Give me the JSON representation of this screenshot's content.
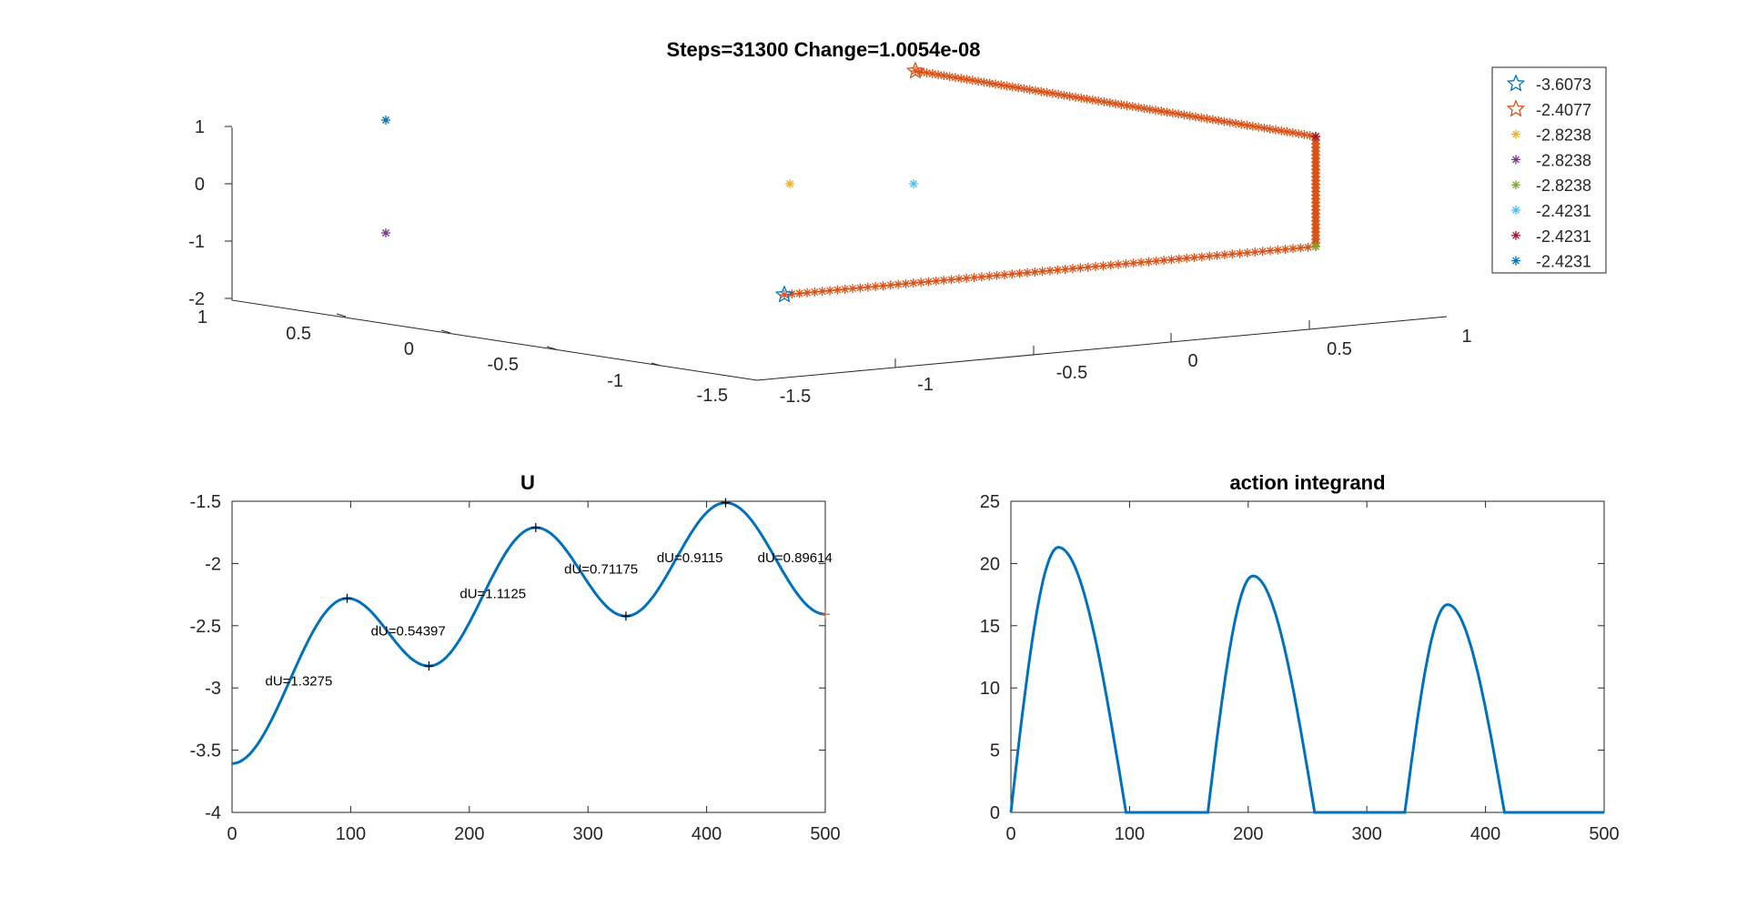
{
  "chart_data": [
    {
      "type": "scatter",
      "title": "Steps=31300 Change=1.0054e-08",
      "xlim": [
        -1.5,
        1
      ],
      "ylim": [
        -1.5,
        1
      ],
      "zlim": [
        -2,
        1
      ],
      "x_ticks": [
        "-1.5",
        "-1",
        "-0.5",
        "0",
        "0.5",
        "1"
      ],
      "y_ticks": [
        "-1.5",
        "-1",
        "-0.5",
        "0",
        "0.5",
        "1"
      ],
      "z_ticks": [
        "-2",
        "-1",
        "0",
        "1"
      ],
      "legend_position": "top-right",
      "series": [
        {
          "name": "-3.6073",
          "marker": "star",
          "color": "#0072BD"
        },
        {
          "name": "-2.4077",
          "marker": "star",
          "color": "#D95319"
        },
        {
          "name": "-2.8238",
          "marker": "asterisk",
          "color": "#EDB120"
        },
        {
          "name": "-2.8238",
          "marker": "asterisk",
          "color": "#7E2F8E"
        },
        {
          "name": "-2.8238",
          "marker": "asterisk",
          "color": "#77AC30"
        },
        {
          "name": "-2.4231",
          "marker": "asterisk",
          "color": "#4DBEEE"
        },
        {
          "name": "-2.4231",
          "marker": "asterisk",
          "color": "#A2142F"
        },
        {
          "name": "-2.4231",
          "marker": "asterisk",
          "color": "#0072BD"
        }
      ]
    },
    {
      "type": "line",
      "title": "U",
      "xlim": [
        0,
        500
      ],
      "ylim": [
        -4,
        -1.5
      ],
      "x_ticks": [
        "0",
        "100",
        "200",
        "300",
        "400",
        "500"
      ],
      "y_ticks": [
        "-1.5",
        "-2",
        "-2.5",
        "-3",
        "-3.5",
        "-4"
      ],
      "series": [
        {
          "color": "#0072BD",
          "x": [
            0,
            97,
            166,
            256,
            332,
            416,
            500
          ],
          "values": [
            -3.6073,
            -2.2798,
            -2.8238,
            -1.7113,
            -2.4231,
            -1.5116,
            -2.4077
          ]
        }
      ],
      "extrema_markers": [
        {
          "x": 97,
          "y": -2.2798
        },
        {
          "x": 166,
          "y": -2.8238
        },
        {
          "x": 256,
          "y": -1.7113
        },
        {
          "x": 332,
          "y": -2.4231
        },
        {
          "x": 416,
          "y": -1.5116
        }
      ],
      "end_marker": {
        "x": 500,
        "y": -2.4077,
        "color": "#D95319"
      },
      "annotations": [
        {
          "text": "dU=1.3275",
          "x": 28,
          "y": -2.98
        },
        {
          "text": "dU=0.54397",
          "x": 117,
          "y": -2.58
        },
        {
          "text": "dU=1.1125",
          "x": 192,
          "y": -2.28
        },
        {
          "text": "dU=0.71175",
          "x": 280,
          "y": -2.08
        },
        {
          "text": "dU=0.9115",
          "x": 358,
          "y": -1.99
        },
        {
          "text": "dU=0.89614",
          "x": 443,
          "y": -1.99
        }
      ]
    },
    {
      "type": "line",
      "title": "action integrand",
      "xlim": [
        0,
        500
      ],
      "ylim": [
        0,
        25
      ],
      "x_ticks": [
        "0",
        "100",
        "200",
        "300",
        "400",
        "500"
      ],
      "y_ticks": [
        "0",
        "5",
        "10",
        "15",
        "20",
        "25"
      ],
      "series": [
        {
          "color": "#0072BD",
          "humps": [
            {
              "start": 0,
              "end": 97,
              "peak_x": 40,
              "peak_y": 21.3
            },
            {
              "start": 166,
              "end": 256,
              "peak_x": 204,
              "peak_y": 19.0
            },
            {
              "start": 332,
              "end": 416,
              "peak_x": 368,
              "peak_y": 16.7
            }
          ],
          "baseline": 0
        }
      ]
    }
  ]
}
